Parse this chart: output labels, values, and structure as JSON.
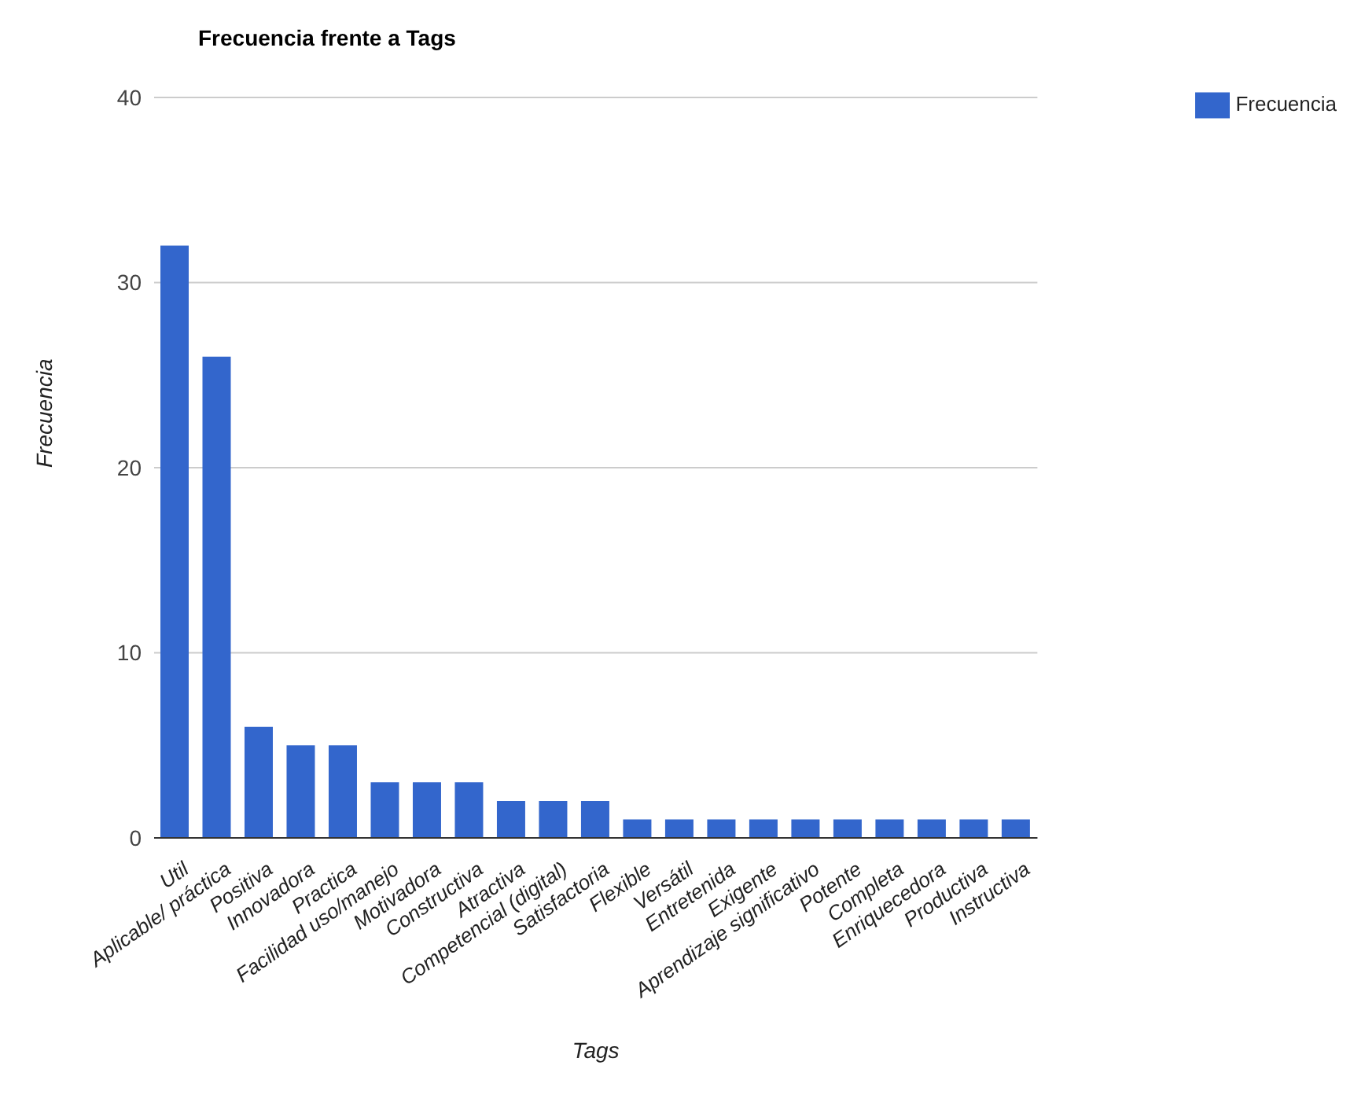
{
  "chart_data": {
    "type": "bar",
    "title": "Frecuencia frente a Tags",
    "xlabel": "Tags",
    "ylabel": "Frecuencia",
    "categories": [
      "Util",
      "Aplicable/ práctica",
      "Positiva",
      "Innovadora",
      "Practica",
      "Facilidad uso/manejo",
      "Motivadora",
      "Constructiva",
      "Atractiva",
      "Competencial (digital)",
      "Satisfactoria",
      "Flexible",
      "Versátil",
      "Entretenida",
      "Exigente",
      "Aprendizaje significativo",
      "Potente",
      "Completa",
      "Enriquecedora",
      "Productiva",
      "Instructiva"
    ],
    "series": [
      {
        "name": "Frecuencia",
        "color": "#3366cc",
        "values": [
          32,
          26,
          6,
          5,
          5,
          3,
          3,
          3,
          2,
          2,
          2,
          1,
          1,
          1,
          1,
          1,
          1,
          1,
          1,
          1,
          1
        ]
      }
    ],
    "ylim": [
      0,
      40
    ],
    "yticks": [
      0,
      10,
      20,
      30,
      40
    ],
    "grid": "y",
    "legend": "top right"
  }
}
